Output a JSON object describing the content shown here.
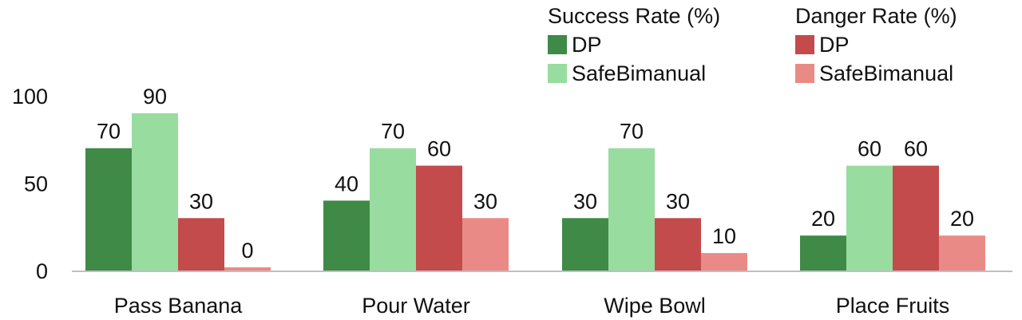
{
  "chart_data": {
    "type": "bar",
    "categories": [
      "Pass Banana",
      "Pour Water",
      "Wipe Bowl",
      "Place Fruits"
    ],
    "series": [
      {
        "name": "DP",
        "group": "Success Rate (%)",
        "color": "#3f8a46",
        "values": [
          70,
          40,
          30,
          20
        ]
      },
      {
        "name": "SafeBimanual",
        "group": "Success Rate (%)",
        "color": "#99dca0",
        "values": [
          90,
          70,
          70,
          60
        ]
      },
      {
        "name": "DP",
        "group": "Danger Rate (%)",
        "color": "#c34b4b",
        "values": [
          30,
          60,
          30,
          60
        ]
      },
      {
        "name": "SafeBimanual",
        "group": "Danger Rate (%)",
        "color": "#ea8a86",
        "values": [
          0,
          30,
          10,
          20
        ]
      }
    ],
    "yticks": [
      0,
      50,
      100
    ],
    "ylim": [
      0,
      100
    ],
    "grid": false,
    "legend_groups": [
      {
        "title": "Success Rate (%)",
        "items": [
          "DP",
          "SafeBimanual"
        ]
      },
      {
        "title": "Danger Rate (%)",
        "items": [
          "DP",
          "SafeBimanual"
        ]
      }
    ],
    "legend_position": "top-right",
    "axis_color": "#bfbfbf"
  }
}
